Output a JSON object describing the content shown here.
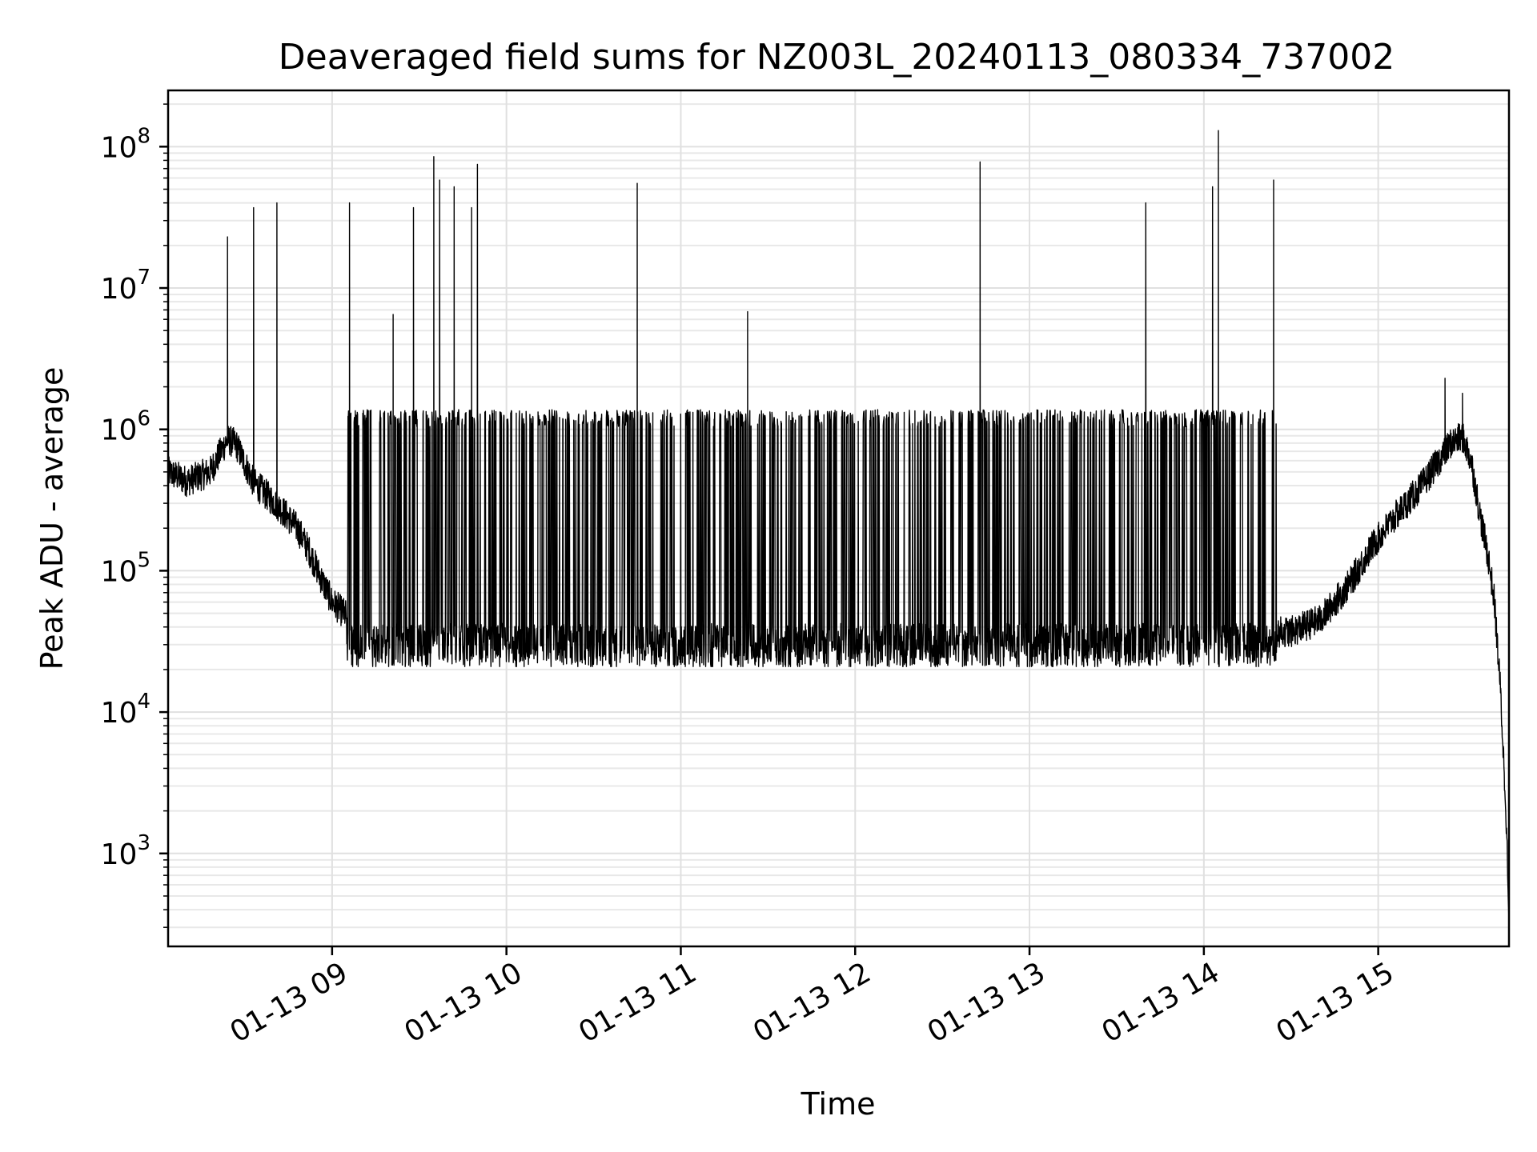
{
  "chart_data": {
    "type": "line",
    "title": "Deaveraged field sums for NZ003L_20240113_080334_737002",
    "xlabel": "Time",
    "ylabel": "Peak ADU - average",
    "yscale": "log",
    "ylim": [
      220,
      250000000
    ],
    "xlim": [
      "2024-01-13 08:03:34",
      "2024-01-13 15:45:00"
    ],
    "xticks": [
      {
        "t": "2024-01-13 09:00",
        "label": "01-13 09"
      },
      {
        "t": "2024-01-13 10:00",
        "label": "01-13 10"
      },
      {
        "t": "2024-01-13 11:00",
        "label": "01-13 11"
      },
      {
        "t": "2024-01-13 12:00",
        "label": "01-13 12"
      },
      {
        "t": "2024-01-13 13:00",
        "label": "01-13 13"
      },
      {
        "t": "2024-01-13 14:00",
        "label": "01-13 14"
      },
      {
        "t": "2024-01-13 15:00",
        "label": "01-13 15"
      }
    ],
    "yticks": [
      {
        "v": 1000,
        "base": "10",
        "exp": "3"
      },
      {
        "v": 10000,
        "base": "10",
        "exp": "4"
      },
      {
        "v": 100000,
        "base": "10",
        "exp": "5"
      },
      {
        "v": 1000000,
        "base": "10",
        "exp": "6"
      },
      {
        "v": 10000000,
        "base": "10",
        "exp": "7"
      },
      {
        "v": 100000000,
        "base": "10",
        "exp": "8"
      }
    ],
    "grid": true,
    "line_color": "#000000",
    "baseline": [
      [
        "2024-01-13 08:03:34",
        500000
      ],
      [
        "2024-01-13 08:10",
        430000
      ],
      [
        "2024-01-13 08:18",
        500000
      ],
      [
        "2024-01-13 08:24",
        850000
      ],
      [
        "2024-01-13 08:27",
        780000
      ],
      [
        "2024-01-13 08:33",
        420000
      ],
      [
        "2024-01-13 08:42",
        280000
      ],
      [
        "2024-01-13 08:48",
        200000
      ],
      [
        "2024-01-13 08:52",
        140000
      ],
      [
        "2024-01-13 08:56",
        90000
      ],
      [
        "2024-01-13 09:00",
        60000
      ],
      [
        "2024-01-13 09:05",
        48000
      ],
      [
        "2024-01-13 09:15",
        38000
      ],
      [
        "2024-01-13 10:00",
        35000
      ],
      [
        "2024-01-13 11:00",
        38000
      ],
      [
        "2024-01-13 12:00",
        33000
      ],
      [
        "2024-01-13 13:00",
        36000
      ],
      [
        "2024-01-13 14:00",
        36000
      ],
      [
        "2024-01-13 14:30",
        37000
      ],
      [
        "2024-01-13 14:40",
        45000
      ],
      [
        "2024-01-13 14:50",
        80000
      ],
      [
        "2024-01-13 14:58",
        150000
      ],
      [
        "2024-01-13 15:05",
        230000
      ],
      [
        "2024-01-13 15:15",
        400000
      ],
      [
        "2024-01-13 15:25",
        800000
      ],
      [
        "2024-01-13 15:29",
        880000
      ],
      [
        "2024-01-13 15:32",
        600000
      ],
      [
        "2024-01-13 15:35",
        250000
      ],
      [
        "2024-01-13 15:38",
        120000
      ],
      [
        "2024-01-13 15:40",
        60000
      ],
      [
        "2024-01-13 15:42",
        15000
      ],
      [
        "2024-01-13 15:44",
        2000
      ],
      [
        "2024-01-13 15:45",
        300
      ]
    ],
    "oscillation": {
      "start": "2024-01-13 09:05",
      "end": "2024-01-13 14:25",
      "high": 1200000,
      "low": 30000
    },
    "spikes": [
      [
        "2024-01-13 08:24",
        23000000
      ],
      [
        "2024-01-13 08:33",
        37000000
      ],
      [
        "2024-01-13 08:41",
        40000000
      ],
      [
        "2024-01-13 09:06",
        40000000
      ],
      [
        "2024-01-13 09:21",
        6500000
      ],
      [
        "2024-01-13 09:28",
        37000000
      ],
      [
        "2024-01-13 09:35",
        85000000
      ],
      [
        "2024-01-13 09:37",
        58000000
      ],
      [
        "2024-01-13 09:42",
        52000000
      ],
      [
        "2024-01-13 09:48",
        37000000
      ],
      [
        "2024-01-13 09:50",
        75000000
      ],
      [
        "2024-01-13 10:45",
        55000000
      ],
      [
        "2024-01-13 11:23",
        6800000
      ],
      [
        "2024-01-13 12:43",
        78000000
      ],
      [
        "2024-01-13 13:40",
        40000000
      ],
      [
        "2024-01-13 14:03",
        52000000
      ],
      [
        "2024-01-13 14:05",
        130000000
      ],
      [
        "2024-01-13 14:24",
        58000000
      ],
      [
        "2024-01-13 15:23",
        2300000
      ],
      [
        "2024-01-13 15:29",
        1800000
      ]
    ]
  }
}
